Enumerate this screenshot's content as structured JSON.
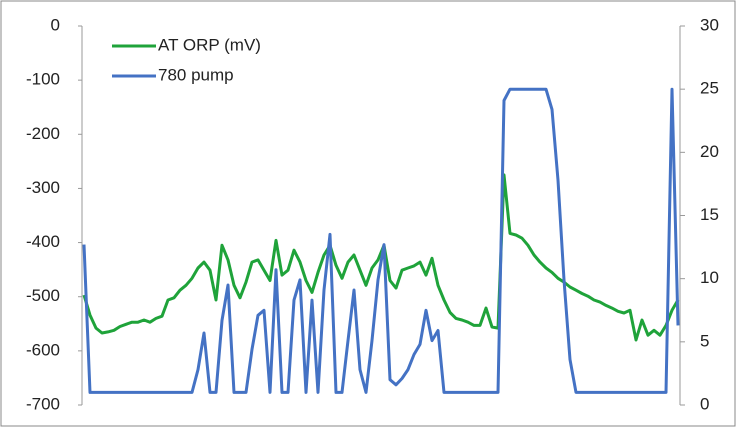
{
  "chart_data": {
    "type": "line",
    "categories": [
      null,
      null,
      null,
      null,
      null,
      null,
      null,
      null,
      null,
      null,
      null,
      null,
      null,
      null,
      null,
      null,
      null,
      null,
      null,
      null,
      null,
      null,
      null,
      null,
      null,
      null,
      null,
      null,
      null,
      null,
      null,
      null,
      null,
      null,
      null,
      null,
      null,
      null,
      null,
      null,
      null,
      null,
      null,
      null,
      null,
      null,
      null,
      null,
      null,
      null,
      null,
      null,
      null,
      null,
      null,
      null,
      null,
      null,
      null,
      null,
      null,
      null,
      null,
      null,
      null,
      null,
      null,
      null,
      null,
      null,
      null,
      null,
      null,
      null,
      null,
      null,
      null,
      null,
      null,
      null,
      null,
      null,
      null,
      null,
      null,
      null,
      null,
      null,
      null,
      null,
      null,
      null,
      null,
      null,
      null,
      null,
      null,
      null,
      null,
      null
    ],
    "series": [
      {
        "name": "AT ORP (mV)",
        "color": "#1fa33a",
        "values": [
          -497,
          -534,
          -558,
          -567,
          -565,
          -562,
          -555,
          -551,
          -547,
          -547,
          -543,
          -547,
          -540,
          -536,
          -506,
          -502,
          -488,
          -479,
          -466,
          -447,
          -436,
          -451,
          -506,
          -405,
          -432,
          -479,
          -502,
          -473,
          -436,
          -432,
          -451,
          -470,
          -396,
          -460,
          -451,
          -414,
          -436,
          -470,
          -492,
          -455,
          -423,
          -405,
          -442,
          -466,
          -436,
          -423,
          -451,
          -479,
          -447,
          -432,
          -405,
          -470,
          -484,
          -451,
          -447,
          -443,
          -436,
          -460,
          -429,
          -479,
          -506,
          -529,
          -540,
          -543,
          -547,
          -553,
          -553,
          -521,
          -556,
          -558,
          -275,
          -383,
          -386,
          -392,
          -405,
          -423,
          -436,
          -447,
          -455,
          -466,
          -473,
          -482,
          -488,
          -494,
          -499,
          -506,
          -510,
          -516,
          -521,
          -527,
          -530,
          -525,
          -580,
          -543,
          -571,
          -562,
          -571,
          -553,
          -525,
          -506
        ]
      },
      {
        "name": "780 pump",
        "color": "#4472c4",
        "axis": "y2",
        "values": [
          12.7,
          1,
          1,
          1,
          1,
          1,
          1,
          1,
          1,
          1,
          1,
          1,
          1,
          1,
          1,
          1,
          1,
          1,
          1,
          2.8,
          5.7,
          1,
          1,
          6.7,
          9.5,
          1,
          1,
          1,
          4.4,
          7.1,
          7.5,
          1,
          10.7,
          1,
          1,
          8.3,
          9.9,
          1,
          8.3,
          1,
          9.1,
          13.5,
          1,
          1,
          5.1,
          9.1,
          2.8,
          1,
          5.1,
          9.9,
          12.7,
          2,
          1.6,
          2.1,
          2.8,
          4,
          4.8,
          7.5,
          5.1,
          5.9,
          1,
          1,
          1,
          1,
          1,
          1,
          1,
          1,
          1,
          1,
          24.1,
          25,
          25,
          25,
          25,
          25,
          25,
          25,
          23.4,
          17.8,
          9.9,
          3.6,
          1,
          1,
          1,
          1,
          1,
          1,
          1,
          1,
          1,
          1,
          1,
          1,
          1,
          1,
          1,
          1,
          25,
          6.3
        ]
      }
    ],
    "ylim": [
      -700,
      0
    ],
    "yticks": [
      0,
      -100,
      -200,
      -300,
      -400,
      -500,
      -600,
      -700
    ],
    "y2lim": [
      0,
      30
    ],
    "y2ticks": [
      30,
      25,
      20,
      15,
      10,
      5,
      0
    ],
    "grid": false,
    "legend": "top-left"
  }
}
